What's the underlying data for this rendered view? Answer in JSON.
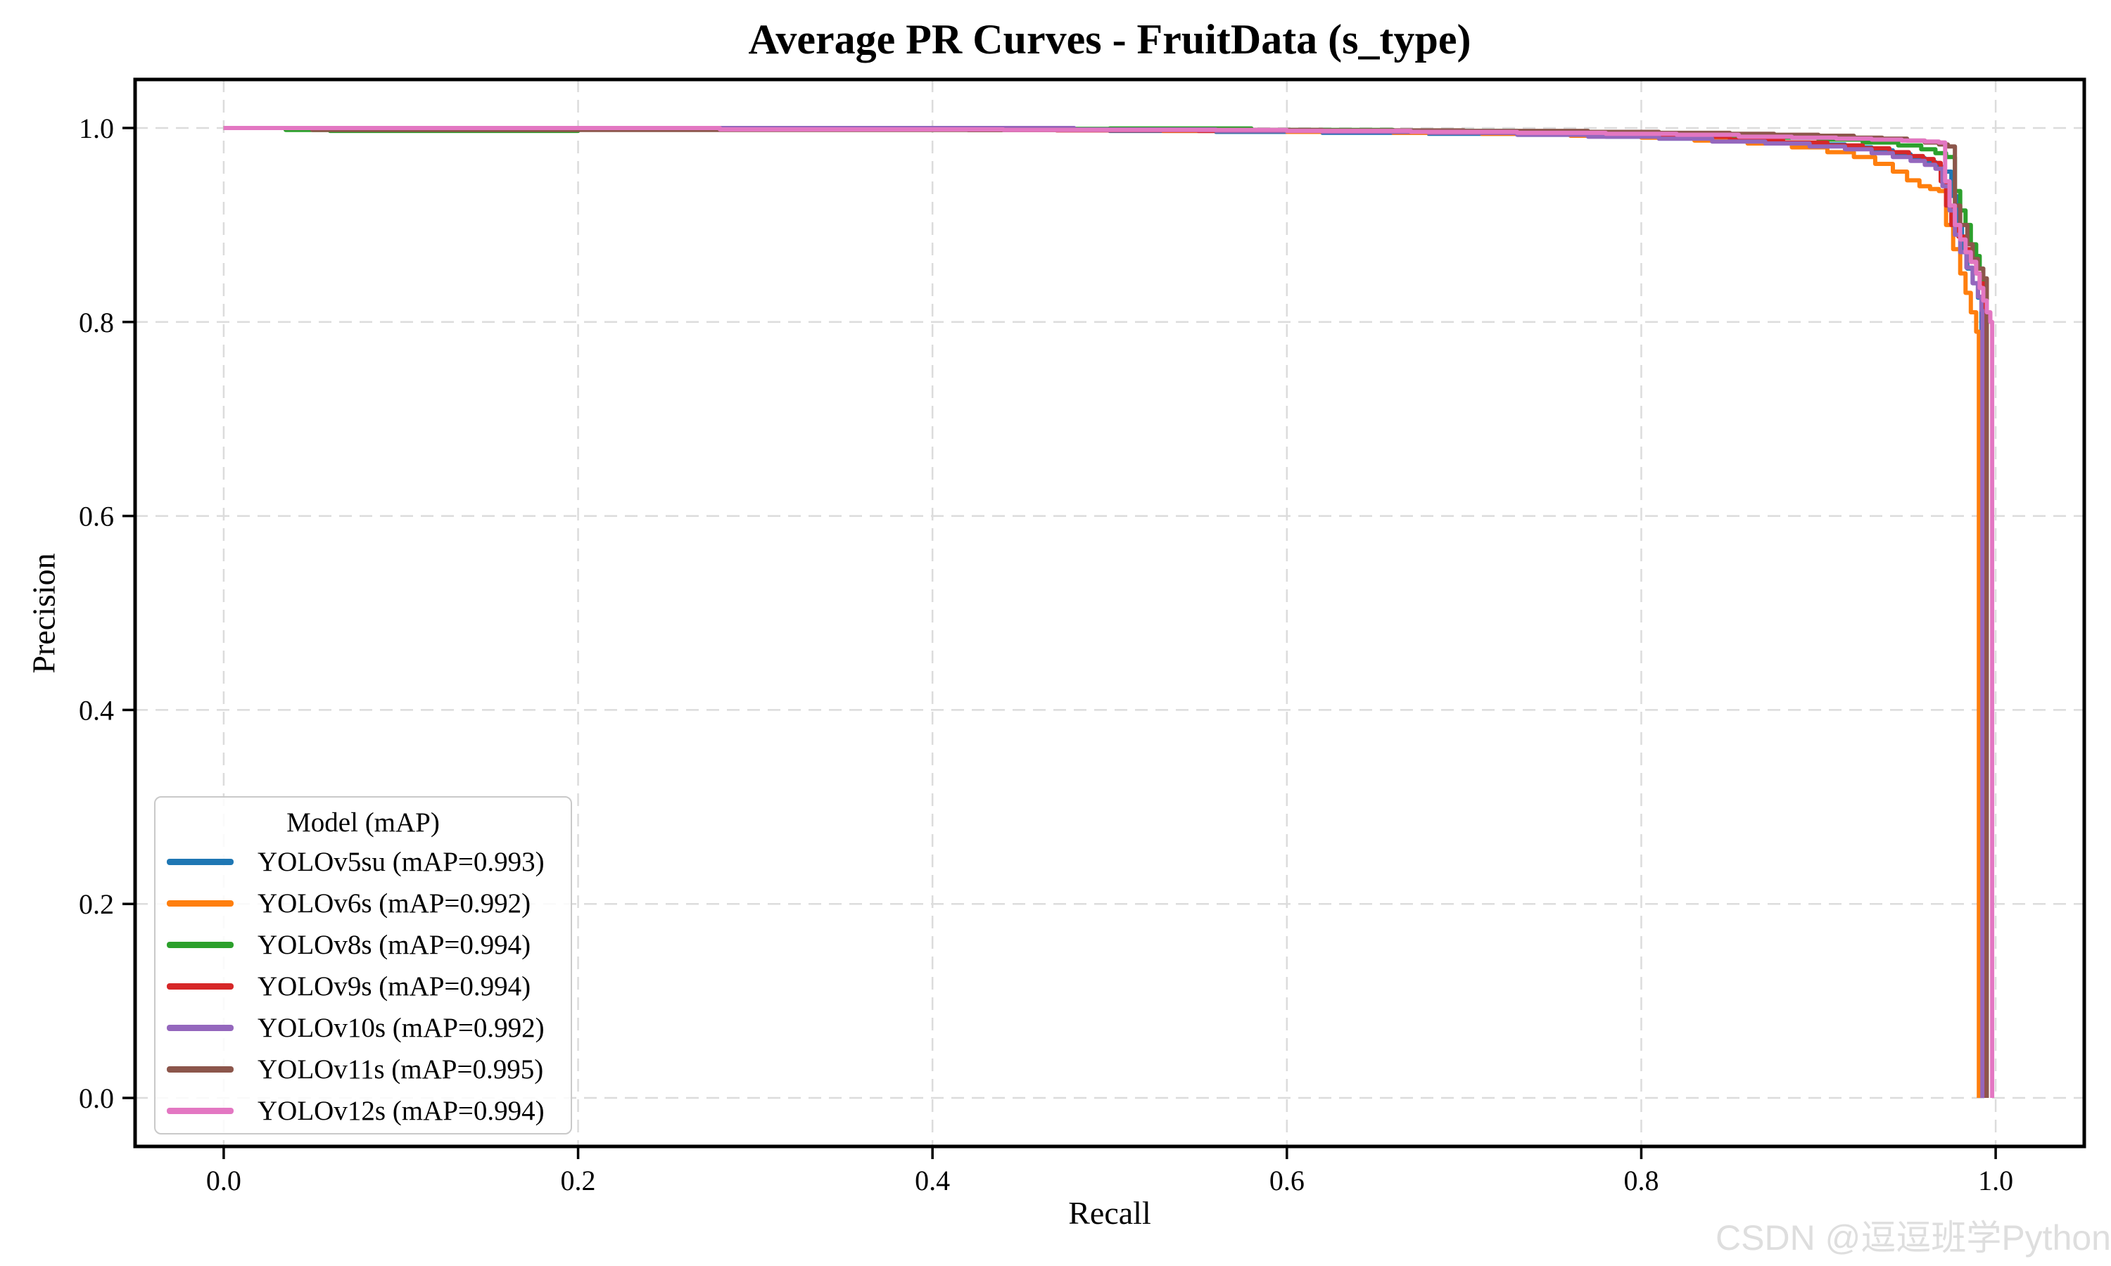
{
  "watermark": {
    "text": "CSDN @逗逗班学Python"
  },
  "chart_data": {
    "type": "line",
    "title": "Average PR Curves - FruitData (s_type)",
    "xlabel": "Recall",
    "ylabel": "Precision",
    "xlim": [
      -0.05,
      1.05
    ],
    "ylim": [
      -0.05,
      1.05
    ],
    "x_ticks": [
      0.0,
      0.2,
      0.4,
      0.6,
      0.8,
      1.0
    ],
    "y_ticks": [
      0.0,
      0.2,
      0.4,
      0.6,
      0.8,
      1.0
    ],
    "grid": true,
    "grid_style": "dashed",
    "grid_color": "#dcdcdc",
    "legend_title": "Model (mAP)",
    "legend_position": "lower left",
    "series": [
      {
        "name": "YOLOv5su",
        "label": "YOLOv5su (mAP=0.993)",
        "map": 0.993,
        "color": "#1f77b4",
        "points": [
          [
            0,
            1
          ],
          [
            0.3,
            0.999
          ],
          [
            0.42,
            0.998
          ],
          [
            0.5,
            0.997
          ],
          [
            0.56,
            0.996
          ],
          [
            0.62,
            0.995
          ],
          [
            0.68,
            0.994
          ],
          [
            0.73,
            0.993
          ],
          [
            0.78,
            0.991
          ],
          [
            0.81,
            0.989
          ],
          [
            0.84,
            0.987
          ],
          [
            0.87,
            0.985
          ],
          [
            0.895,
            0.983
          ],
          [
            0.915,
            0.98
          ],
          [
            0.93,
            0.977
          ],
          [
            0.942,
            0.973
          ],
          [
            0.952,
            0.969
          ],
          [
            0.96,
            0.965
          ],
          [
            0.966,
            0.96
          ],
          [
            0.971,
            0.955
          ],
          [
            0.975,
            0.93
          ],
          [
            0.978,
            0.9
          ],
          [
            0.981,
            0.875
          ],
          [
            0.984,
            0.855
          ],
          [
            0.987,
            0.84
          ],
          [
            0.99,
            0.825
          ],
          [
            0.992,
            0.81
          ],
          [
            0.992,
            0
          ]
        ]
      },
      {
        "name": "YOLOv6s",
        "label": "YOLOv6s (mAP=0.992)",
        "map": 0.992,
        "color": "#ff7f0e",
        "points": [
          [
            0,
            1
          ],
          [
            0.45,
            0.998
          ],
          [
            0.53,
            0.997
          ],
          [
            0.6,
            0.996
          ],
          [
            0.66,
            0.995
          ],
          [
            0.71,
            0.994
          ],
          [
            0.76,
            0.992
          ],
          [
            0.8,
            0.99
          ],
          [
            0.83,
            0.987
          ],
          [
            0.86,
            0.984
          ],
          [
            0.885,
            0.98
          ],
          [
            0.905,
            0.975
          ],
          [
            0.92,
            0.97
          ],
          [
            0.932,
            0.963
          ],
          [
            0.942,
            0.955
          ],
          [
            0.95,
            0.946
          ],
          [
            0.957,
            0.94
          ],
          [
            0.963,
            0.937
          ],
          [
            0.968,
            0.935
          ],
          [
            0.972,
            0.9
          ],
          [
            0.976,
            0.875
          ],
          [
            0.98,
            0.85
          ],
          [
            0.983,
            0.83
          ],
          [
            0.986,
            0.81
          ],
          [
            0.989,
            0.79
          ],
          [
            0.9905,
            0
          ]
        ]
      },
      {
        "name": "YOLOv8s",
        "label": "YOLOv8s (mAP=0.994)",
        "map": 0.994,
        "color": "#2ca02c",
        "points": [
          [
            0,
            1
          ],
          [
            0.035,
            0.998
          ],
          [
            0.06,
            0.997
          ],
          [
            0.15,
            0.997
          ],
          [
            0.2,
            0.9985
          ],
          [
            0.35,
            0.999
          ],
          [
            0.5,
            0.9995
          ],
          [
            0.58,
            0.998
          ],
          [
            0.66,
            0.997
          ],
          [
            0.73,
            0.996
          ],
          [
            0.79,
            0.994
          ],
          [
            0.83,
            0.992
          ],
          [
            0.87,
            0.99
          ],
          [
            0.9,
            0.988
          ],
          [
            0.925,
            0.985
          ],
          [
            0.945,
            0.982
          ],
          [
            0.958,
            0.978
          ],
          [
            0.966,
            0.974
          ],
          [
            0.972,
            0.97
          ],
          [
            0.977,
            0.935
          ],
          [
            0.98,
            0.915
          ],
          [
            0.983,
            0.9
          ],
          [
            0.986,
            0.88
          ],
          [
            0.989,
            0.868
          ],
          [
            0.991,
            0.855
          ],
          [
            0.993,
            0.842
          ],
          [
            0.9945,
            0
          ]
        ]
      },
      {
        "name": "YOLOv9s",
        "label": "YOLOv9s (mAP=0.994)",
        "map": 0.994,
        "color": "#d62728",
        "points": [
          [
            0,
            1
          ],
          [
            0.35,
            1
          ],
          [
            0.37,
            0.9985
          ],
          [
            0.42,
            0.998
          ],
          [
            0.47,
            0.9975
          ],
          [
            0.55,
            0.997
          ],
          [
            0.64,
            0.996
          ],
          [
            0.71,
            0.995
          ],
          [
            0.77,
            0.993
          ],
          [
            0.81,
            0.991
          ],
          [
            0.85,
            0.988
          ],
          [
            0.88,
            0.985
          ],
          [
            0.905,
            0.982
          ],
          [
            0.925,
            0.979
          ],
          [
            0.94,
            0.975
          ],
          [
            0.951,
            0.971
          ],
          [
            0.959,
            0.968
          ],
          [
            0.965,
            0.964
          ],
          [
            0.969,
            0.945
          ],
          [
            0.972,
            0.92
          ],
          [
            0.975,
            0.9
          ],
          [
            0.979,
            0.888
          ],
          [
            0.983,
            0.875
          ],
          [
            0.986,
            0.862
          ],
          [
            0.989,
            0.85
          ],
          [
            0.991,
            0.84
          ],
          [
            0.9935,
            0
          ]
        ]
      },
      {
        "name": "YOLOv10s",
        "label": "YOLOv10s (mAP=0.992)",
        "map": 0.992,
        "color": "#9467bd",
        "points": [
          [
            0,
            1
          ],
          [
            0.48,
            0.9985
          ],
          [
            0.56,
            0.997
          ],
          [
            0.62,
            0.996
          ],
          [
            0.68,
            0.995
          ],
          [
            0.73,
            0.993
          ],
          [
            0.77,
            0.991
          ],
          [
            0.81,
            0.989
          ],
          [
            0.84,
            0.986
          ],
          [
            0.87,
            0.984
          ],
          [
            0.895,
            0.981
          ],
          [
            0.915,
            0.978
          ],
          [
            0.93,
            0.974
          ],
          [
            0.942,
            0.97
          ],
          [
            0.952,
            0.966
          ],
          [
            0.96,
            0.962
          ],
          [
            0.966,
            0.958
          ],
          [
            0.97,
            0.94
          ],
          [
            0.974,
            0.915
          ],
          [
            0.977,
            0.89
          ],
          [
            0.98,
            0.872
          ],
          [
            0.9835,
            0.856
          ],
          [
            0.987,
            0.84
          ],
          [
            0.99,
            0.826
          ],
          [
            0.992,
            0.812
          ],
          [
            0.9925,
            0
          ]
        ]
      },
      {
        "name": "YOLOv11s",
        "label": "YOLOv11s (mAP=0.995)",
        "map": 0.995,
        "color": "#8c564b",
        "points": [
          [
            0,
            1
          ],
          [
            0.05,
            0.998
          ],
          [
            0.55,
            0.998
          ],
          [
            0.62,
            0.9975
          ],
          [
            0.7,
            0.997
          ],
          [
            0.77,
            0.996
          ],
          [
            0.81,
            0.995
          ],
          [
            0.85,
            0.994
          ],
          [
            0.875,
            0.993
          ],
          [
            0.9,
            0.992
          ],
          [
            0.92,
            0.99
          ],
          [
            0.936,
            0.989
          ],
          [
            0.95,
            0.987
          ],
          [
            0.96,
            0.985
          ],
          [
            0.968,
            0.983
          ],
          [
            0.973,
            0.981
          ],
          [
            0.977,
            0.92
          ],
          [
            0.98,
            0.9
          ],
          [
            0.984,
            0.88
          ],
          [
            0.987,
            0.865
          ],
          [
            0.99,
            0.855
          ],
          [
            0.993,
            0.845
          ],
          [
            0.995,
            0
          ]
        ]
      },
      {
        "name": "YOLOv12s",
        "label": "YOLOv12s (mAP=0.994)",
        "map": 0.994,
        "color": "#e377c2",
        "points": [
          [
            0,
            1
          ],
          [
            0.28,
            0.9985
          ],
          [
            0.44,
            0.998
          ],
          [
            0.6,
            0.997
          ],
          [
            0.67,
            0.996
          ],
          [
            0.73,
            0.995
          ],
          [
            0.78,
            0.994
          ],
          [
            0.82,
            0.993
          ],
          [
            0.855,
            0.991
          ],
          [
            0.885,
            0.99
          ],
          [
            0.91,
            0.989
          ],
          [
            0.93,
            0.988
          ],
          [
            0.947,
            0.987
          ],
          [
            0.96,
            0.986
          ],
          [
            0.968,
            0.985
          ],
          [
            0.9715,
            0.945
          ],
          [
            0.974,
            0.92
          ],
          [
            0.977,
            0.9
          ],
          [
            0.98,
            0.885
          ],
          [
            0.983,
            0.872
          ],
          [
            0.986,
            0.862
          ],
          [
            0.989,
            0.85
          ],
          [
            0.991,
            0.835
          ],
          [
            0.993,
            0.822
          ],
          [
            0.995,
            0.81
          ],
          [
            0.997,
            0.8
          ],
          [
            0.998,
            0
          ]
        ]
      }
    ]
  }
}
